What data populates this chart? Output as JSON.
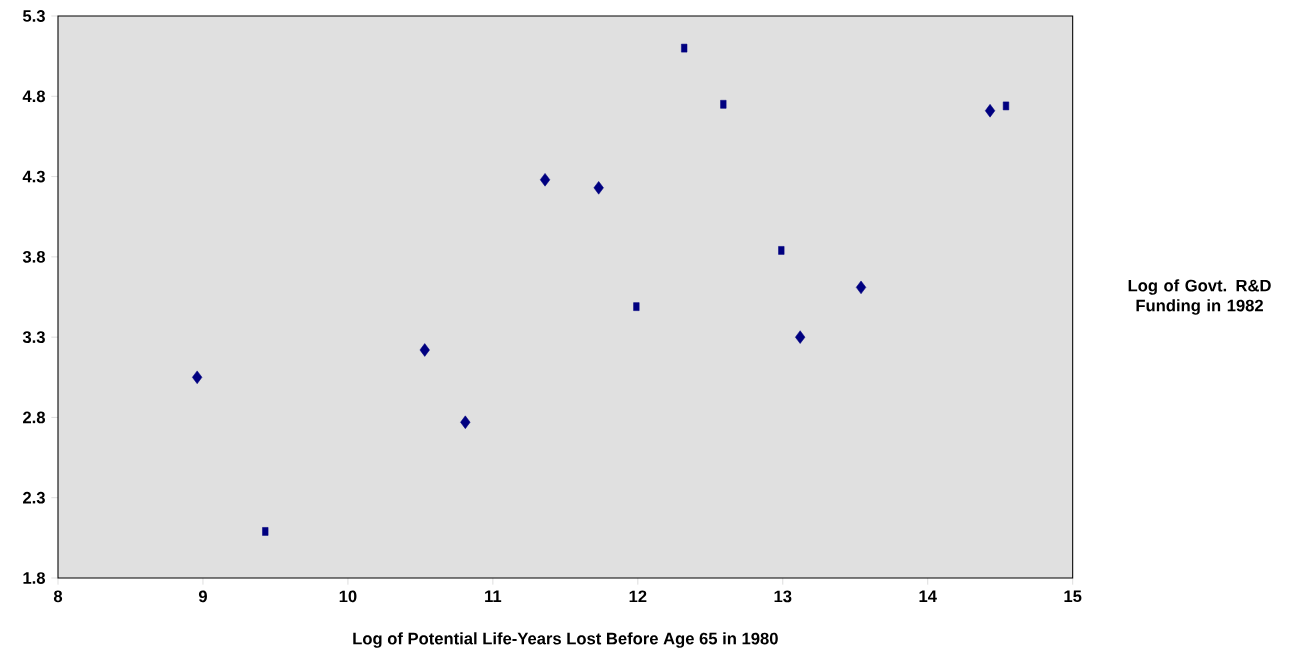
{
  "chart_data": {
    "type": "scatter",
    "xlabel": "Log of Potential Life-Years Lost Before Age 65 in 1980",
    "ylabel": "Log of Govt. R&D Funding in 1982",
    "xlim": [
      8,
      15
    ],
    "xticks": [
      8,
      9,
      10,
      11,
      12,
      13,
      14,
      15
    ],
    "ylim": [
      1.8,
      5.3
    ],
    "yticks": [
      1.8,
      2.3,
      2.8,
      3.3,
      3.8,
      4.3,
      4.8,
      5.3
    ],
    "grid": false,
    "series": [
      {
        "color": "#000080",
        "marker": "diamond",
        "x": [
          8.96,
          10.53,
          10.81,
          11.36,
          11.73,
          13.12,
          13.54,
          14.43
        ],
        "values": [
          3.05,
          3.22,
          2.77,
          4.28,
          4.23,
          3.3,
          3.61,
          4.71
        ]
      },
      {
        "color": "#000080",
        "marker": "square",
        "x": [
          9.43,
          11.99,
          12.32,
          12.59,
          12.99,
          14.54
        ],
        "values": [
          2.09,
          3.49,
          5.1,
          4.75,
          3.84,
          4.74
        ]
      }
    ]
  }
}
